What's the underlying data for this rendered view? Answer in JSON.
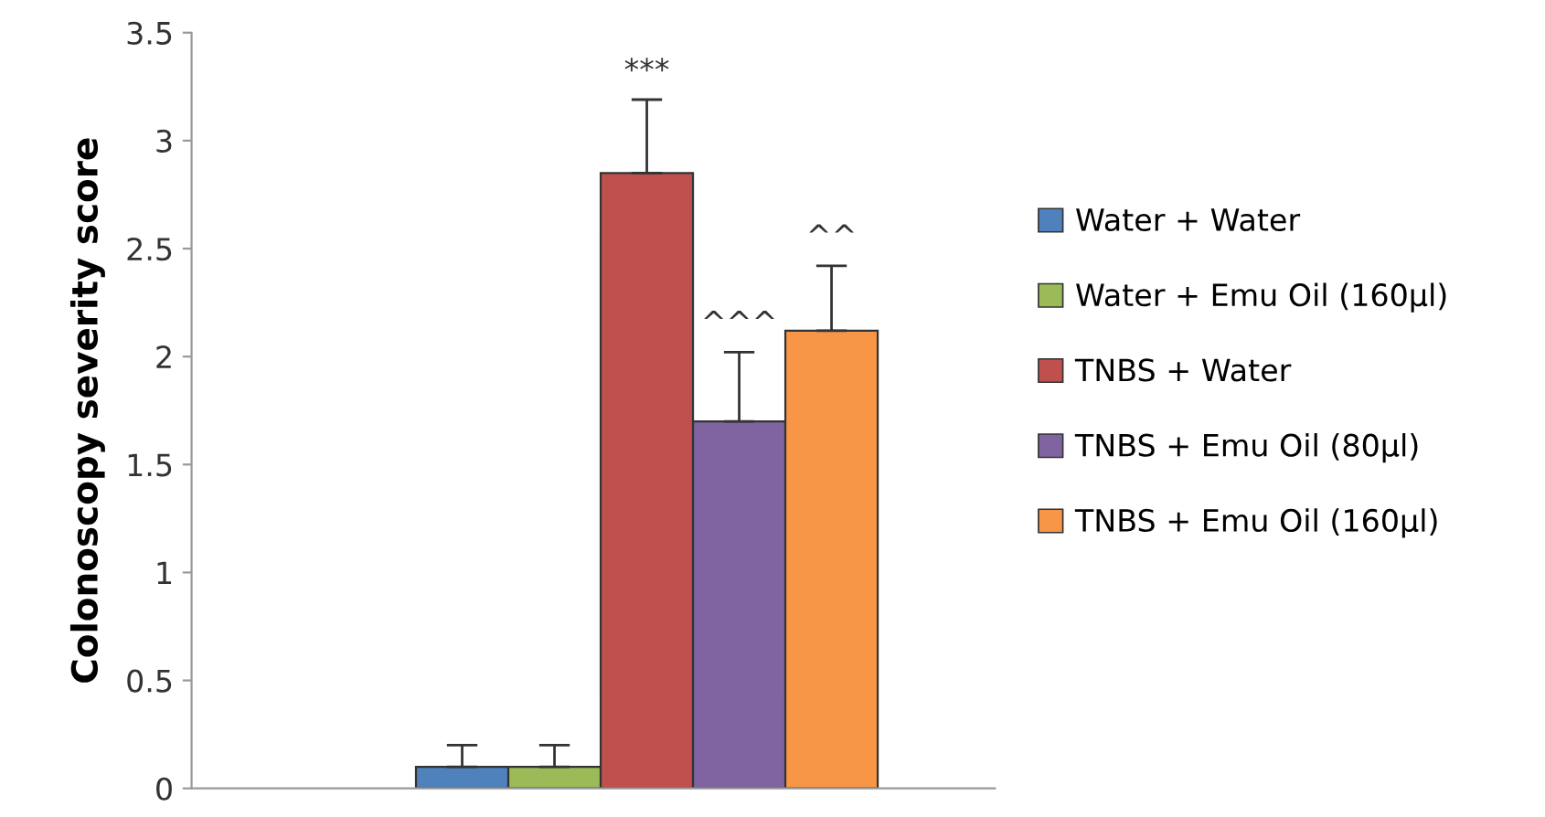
{
  "chart_data": {
    "type": "bar",
    "ylabel": "Colonoscopy severity score",
    "categories": [
      null
    ],
    "series": [
      {
        "name": "Water + Water",
        "color": "#4f81bd",
        "values": [
          0.1
        ],
        "errors": [
          [
            0.1,
            0.2
          ]
        ]
      },
      {
        "name": "Water + Emu Oil (160µl)",
        "color": "#9bbb59",
        "values": [
          0.1
        ],
        "errors": [
          [
            0.1,
            0.2
          ]
        ]
      },
      {
        "name": "TNBS + Water",
        "color": "#c0504d",
        "values": [
          2.85
        ],
        "errors": [
          [
            2.85,
            3.19
          ]
        ]
      },
      {
        "name": "TNBS + Emu Oil (80µl)",
        "color": "#8064a2",
        "values": [
          1.7
        ],
        "errors": [
          [
            1.7,
            2.02
          ]
        ]
      },
      {
        "name": "TNBS + Emu Oil (160µl)",
        "color": "#f79646",
        "values": [
          2.12
        ],
        "errors": [
          [
            2.12,
            2.42
          ]
        ]
      }
    ],
    "annotations": [
      "***",
      "^^^",
      "^^"
    ],
    "ylim": [
      0,
      3.5
    ],
    "yticks": [
      0,
      0.5,
      1,
      1.5,
      2,
      2.5,
      3,
      3.5
    ],
    "tick_labels": "y",
    "grid": false,
    "legend": "right"
  }
}
